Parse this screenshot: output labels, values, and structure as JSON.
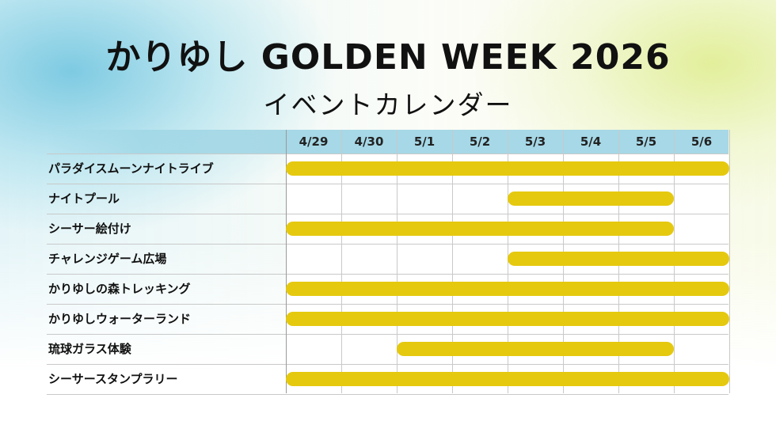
{
  "title": "かりゆし GOLDEN WEEK 2026",
  "subtitle": "イベントカレンダー",
  "colors": {
    "header": "#a6d8e7",
    "bar": "#e5c90f",
    "grid": "#c9c9c9"
  },
  "dates": [
    "4/29",
    "4/30",
    "5/1",
    "5/2",
    "5/3",
    "5/4",
    "5/5",
    "5/6"
  ],
  "events": [
    {
      "name": "パラダイスムーンナイトライブ",
      "start": "4/29",
      "end": "5/6"
    },
    {
      "name": "ナイトプール",
      "start": "5/3",
      "end": "5/5"
    },
    {
      "name": "シーサー絵付け",
      "start": "4/29",
      "end": "5/5"
    },
    {
      "name": "チャレンジゲーム広場",
      "start": "5/3",
      "end": "5/6"
    },
    {
      "name": "かりゆしの森トレッキング",
      "start": "4/29",
      "end": "5/6"
    },
    {
      "name": "かりゆしウォーターランド",
      "start": "4/29",
      "end": "5/6"
    },
    {
      "name": "琉球ガラス体験",
      "start": "5/1",
      "end": "5/5"
    },
    {
      "name": "シーサースタンプラリー",
      "start": "4/29",
      "end": "5/6"
    }
  ]
}
